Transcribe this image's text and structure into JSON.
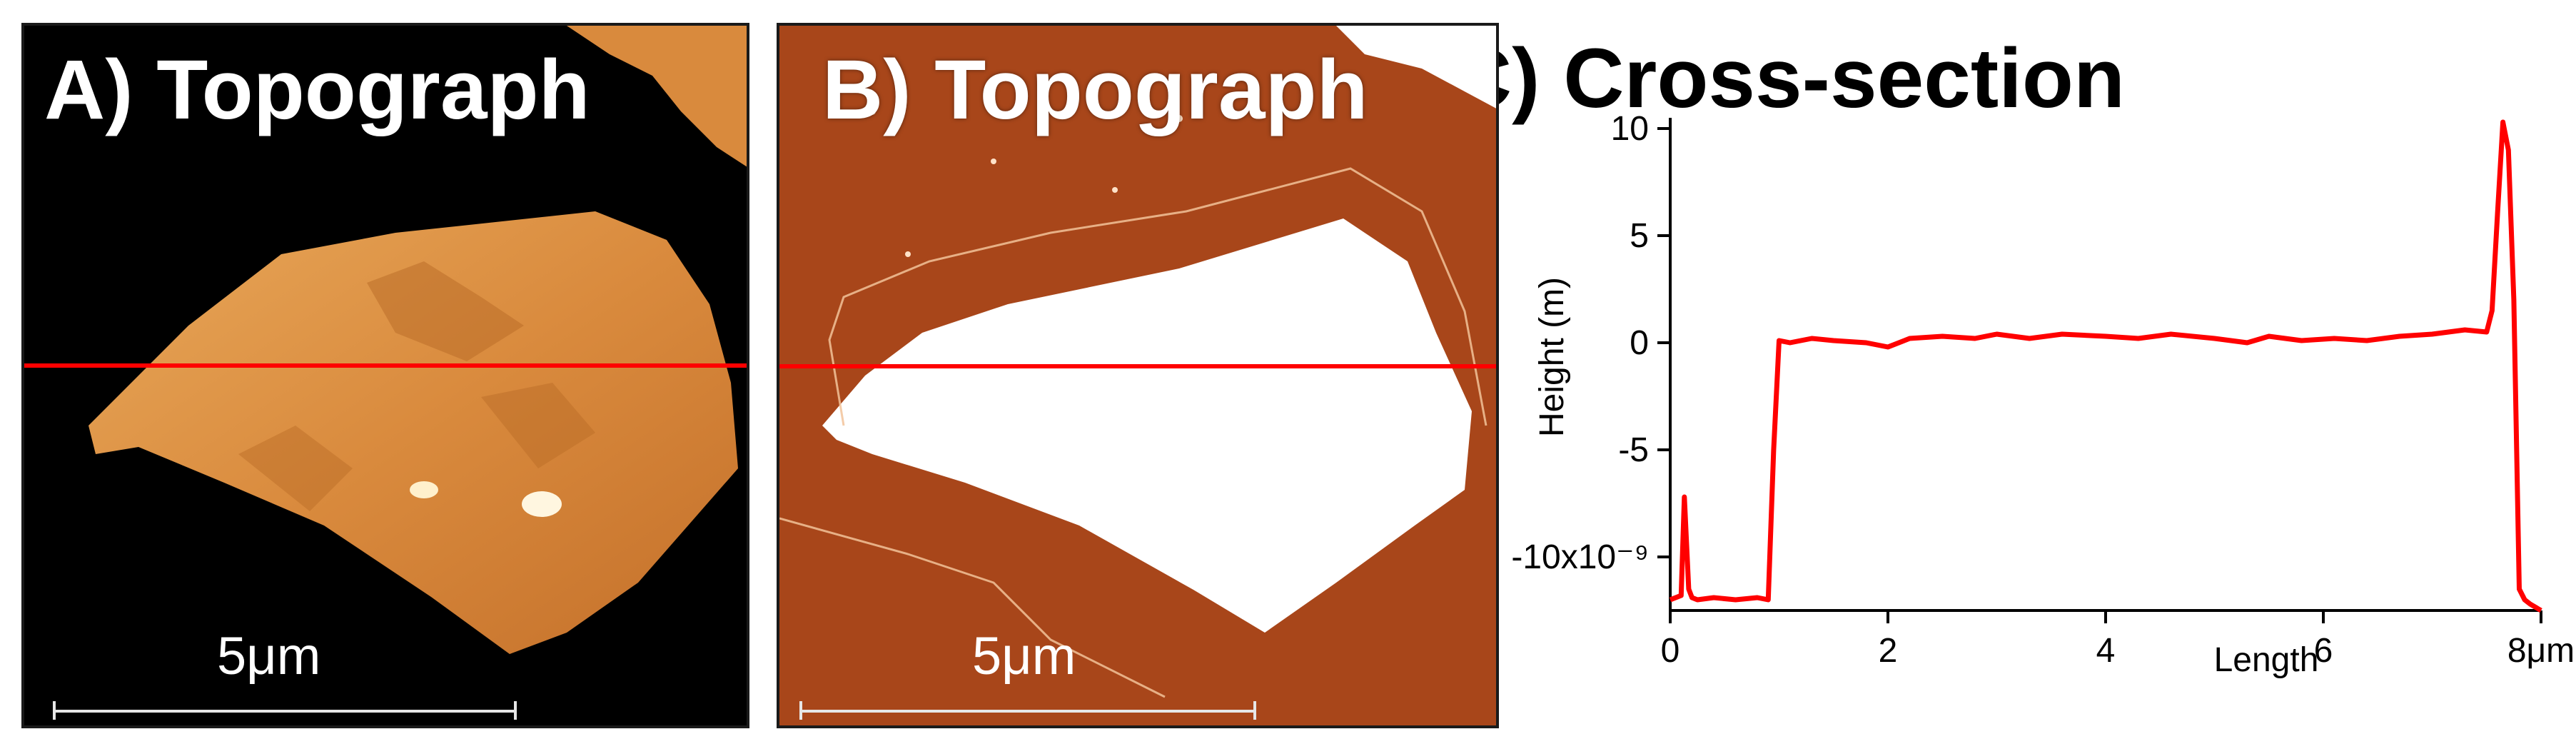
{
  "panels": {
    "a": {
      "title": "A) Topograph",
      "scale_label": "5μm"
    },
    "b": {
      "title": "B) Topograph",
      "scale_label": "5μm"
    }
  },
  "colors": {
    "profile_line": "#ff0000",
    "topograph_background": "#000000",
    "flake_a": "#d98a3d",
    "substrate_b": "#a8461a",
    "flake_b": "#ffffff"
  },
  "chart_data": {
    "type": "line",
    "title": "C) Cross-section",
    "xlabel": "Length",
    "ylabel": "Height (m)",
    "xlim": [
      0,
      8
    ],
    "ylim": [
      -12.5,
      10.5
    ],
    "x_ticks": [
      "0",
      "2",
      "4",
      "6",
      "8μm"
    ],
    "x_tick_values": [
      0,
      2,
      4,
      6,
      8
    ],
    "y_ticks": [
      "10",
      "5",
      "0",
      "-5",
      "-10x10⁻⁹"
    ],
    "y_tick_values": [
      10,
      5,
      0,
      -5,
      -10
    ],
    "grid": false,
    "series": [
      {
        "x": [
          0,
          0.1,
          0.13,
          0.17,
          0.2,
          0.25,
          0.4,
          0.6,
          0.8,
          0.9,
          0.95,
          1.0,
          1.1,
          1.3,
          1.5,
          1.8,
          2.0,
          2.2,
          2.5,
          2.8,
          3.0,
          3.3,
          3.6,
          4.0,
          4.3,
          4.6,
          5.0,
          5.3,
          5.5,
          5.8,
          6.1,
          6.4,
          6.7,
          7.0,
          7.3,
          7.5,
          7.55,
          7.6,
          7.65,
          7.7,
          7.75,
          7.8,
          7.85,
          7.9,
          8.0
        ],
        "y": [
          -12.0,
          -11.8,
          -7.2,
          -11.5,
          -11.9,
          -12.0,
          -11.9,
          -12.0,
          -11.9,
          -12.0,
          -5.0,
          0.1,
          0.0,
          0.2,
          0.1,
          0.0,
          -0.2,
          0.2,
          0.3,
          0.2,
          0.4,
          0.2,
          0.4,
          0.3,
          0.2,
          0.4,
          0.2,
          0.0,
          0.3,
          0.1,
          0.2,
          0.1,
          0.3,
          0.4,
          0.6,
          0.5,
          1.5,
          6.0,
          10.3,
          9.0,
          2.0,
          -11.5,
          -12.0,
          -12.2,
          -12.5
        ]
      }
    ]
  }
}
